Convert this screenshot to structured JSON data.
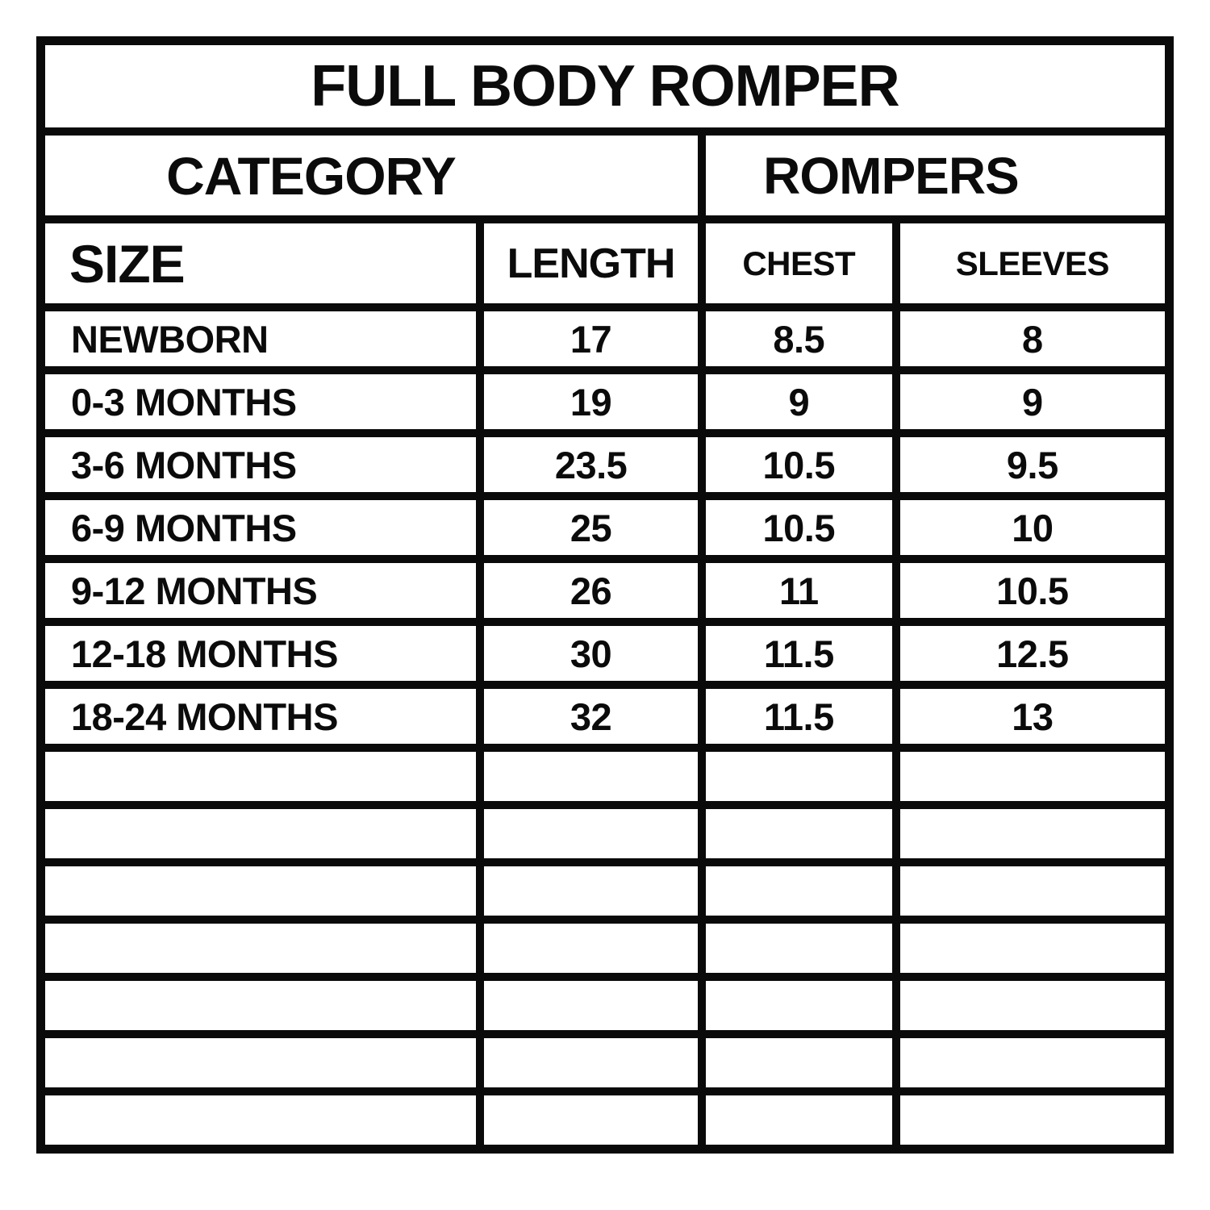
{
  "chart_data": {
    "type": "table",
    "title": "FULL BODY ROMPER",
    "category_label": "CATEGORY",
    "category_value": "ROMPERS",
    "columns": [
      "SIZE",
      "LENGTH",
      "CHEST",
      "SLEEVES"
    ],
    "rows": [
      [
        "NEWBORN",
        "17",
        "8.5",
        "8"
      ],
      [
        "0-3 MONTHS",
        "19",
        "9",
        "9"
      ],
      [
        "3-6 MONTHS",
        "23.5",
        "10.5",
        "9.5"
      ],
      [
        "6-9 MONTHS",
        "25",
        "10.5",
        "10"
      ],
      [
        "9-12 MONTHS",
        "26",
        "11",
        "10.5"
      ],
      [
        "12-18 MONTHS",
        "30",
        "11.5",
        "12.5"
      ],
      [
        "18-24 MONTHS",
        "32",
        "11.5",
        "13"
      ]
    ],
    "empty_rows": 7,
    "layout_hints": {
      "grid": "on",
      "border_color": "#0a0a0a",
      "background_color": "#ffffff",
      "text_color": "#0b0b0b"
    }
  }
}
